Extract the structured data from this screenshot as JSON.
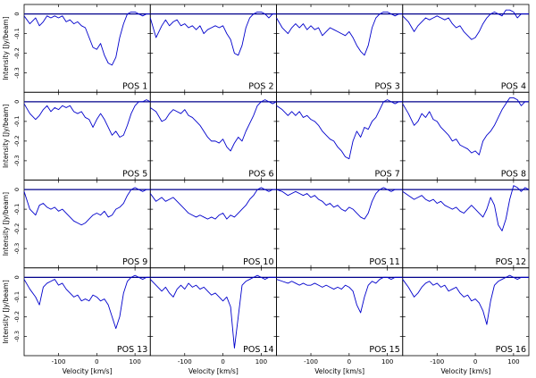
{
  "figure": {
    "ylabel": "Intensity [Jy/beam]",
    "xlabel": "Velocity [km/s]",
    "line_color": "#0000cc",
    "baseline_color": "#00008b"
  },
  "chart_data": {
    "type": "line",
    "xlabel": "Velocity [km/s]",
    "ylabel": "Intensity [Jy/beam]",
    "xlim": [
      -190,
      140
    ],
    "ylim": [
      -0.38,
      0.03
    ],
    "x_ticks": [
      -100,
      0,
      100
    ],
    "y_ticks": [
      0,
      -0.1,
      -0.2,
      -0.3
    ],
    "y_tick_labels": [
      "0",
      "-0.1",
      "-0.2",
      "-0.3"
    ],
    "grid": false,
    "layout": "4x4 grid of panels with shared axes",
    "panels": [
      {
        "name": "POS 1",
        "x": [
          -190,
          -175,
          -160,
          -150,
          -140,
          -130,
          -120,
          -110,
          -100,
          -90,
          -80,
          -70,
          -60,
          -50,
          -40,
          -30,
          -20,
          -10,
          0,
          10,
          20,
          30,
          40,
          50,
          60,
          70,
          80,
          90,
          100,
          110,
          120,
          130,
          140
        ],
        "y": [
          -0.01,
          -0.05,
          -0.02,
          -0.06,
          -0.04,
          -0.01,
          -0.02,
          -0.01,
          -0.02,
          -0.01,
          -0.04,
          -0.03,
          -0.05,
          -0.04,
          -0.06,
          -0.07,
          -0.12,
          -0.17,
          -0.18,
          -0.15,
          -0.21,
          -0.25,
          -0.26,
          -0.22,
          -0.12,
          -0.05,
          0.0,
          0.01,
          0.01,
          0.0,
          -0.01,
          0.0,
          0.0
        ]
      },
      {
        "name": "POS 2",
        "x": [
          -190,
          -175,
          -160,
          -150,
          -140,
          -130,
          -120,
          -110,
          -100,
          -90,
          -80,
          -70,
          -60,
          -50,
          -40,
          -30,
          -20,
          -10,
          0,
          10,
          20,
          30,
          40,
          50,
          60,
          70,
          80,
          90,
          100,
          110,
          120,
          130,
          140
        ],
        "y": [
          -0.02,
          -0.12,
          -0.06,
          -0.03,
          -0.06,
          -0.04,
          -0.03,
          -0.06,
          -0.05,
          -0.07,
          -0.06,
          -0.08,
          -0.06,
          -0.1,
          -0.08,
          -0.07,
          -0.06,
          -0.07,
          -0.06,
          -0.1,
          -0.13,
          -0.2,
          -0.21,
          -0.16,
          -0.07,
          -0.02,
          0.0,
          0.01,
          0.01,
          0.0,
          -0.02,
          0.0,
          0.0
        ]
      },
      {
        "name": "POS 3",
        "x": [
          -190,
          -175,
          -160,
          -150,
          -140,
          -130,
          -120,
          -110,
          -100,
          -90,
          -80,
          -70,
          -60,
          -50,
          -40,
          -30,
          -20,
          -10,
          0,
          10,
          20,
          30,
          40,
          50,
          60,
          70,
          80,
          90,
          100,
          110,
          120,
          130,
          140
        ],
        "y": [
          -0.02,
          -0.07,
          -0.1,
          -0.07,
          -0.05,
          -0.07,
          -0.05,
          -0.08,
          -0.06,
          -0.08,
          -0.07,
          -0.11,
          -0.09,
          -0.07,
          -0.08,
          -0.09,
          -0.1,
          -0.11,
          -0.09,
          -0.12,
          -0.16,
          -0.19,
          -0.21,
          -0.16,
          -0.07,
          -0.02,
          0.0,
          0.01,
          0.01,
          0.0,
          -0.01,
          0.0,
          0.0
        ]
      },
      {
        "name": "POS 4",
        "x": [
          -190,
          -175,
          -160,
          -150,
          -140,
          -130,
          -120,
          -110,
          -100,
          -90,
          -80,
          -70,
          -60,
          -50,
          -40,
          -30,
          -20,
          -10,
          0,
          10,
          20,
          30,
          40,
          50,
          60,
          70,
          80,
          90,
          100,
          110,
          120,
          130,
          140
        ],
        "y": [
          -0.01,
          -0.04,
          -0.09,
          -0.06,
          -0.04,
          -0.02,
          -0.03,
          -0.02,
          -0.01,
          -0.02,
          -0.03,
          -0.02,
          -0.05,
          -0.07,
          -0.06,
          -0.09,
          -0.11,
          -0.13,
          -0.12,
          -0.09,
          -0.05,
          -0.02,
          0.0,
          0.01,
          0.0,
          -0.01,
          0.02,
          0.02,
          0.01,
          -0.02,
          0.0,
          0.0,
          0.0
        ]
      },
      {
        "name": "POS 5",
        "x": [
          -190,
          -175,
          -160,
          -150,
          -140,
          -130,
          -120,
          -110,
          -100,
          -90,
          -80,
          -70,
          -60,
          -50,
          -40,
          -30,
          -20,
          -10,
          0,
          10,
          20,
          30,
          40,
          50,
          60,
          70,
          80,
          90,
          100,
          110,
          120,
          130,
          140
        ],
        "y": [
          -0.01,
          -0.06,
          -0.09,
          -0.07,
          -0.04,
          -0.02,
          -0.05,
          -0.03,
          -0.04,
          -0.02,
          -0.03,
          -0.02,
          -0.05,
          -0.06,
          -0.05,
          -0.08,
          -0.09,
          -0.13,
          -0.09,
          -0.06,
          -0.09,
          -0.13,
          -0.17,
          -0.15,
          -0.18,
          -0.17,
          -0.12,
          -0.06,
          -0.02,
          0.0,
          0.0,
          0.01,
          0.0
        ]
      },
      {
        "name": "POS 6",
        "x": [
          -190,
          -175,
          -160,
          -150,
          -140,
          -130,
          -120,
          -110,
          -100,
          -90,
          -80,
          -70,
          -60,
          -50,
          -40,
          -30,
          -20,
          -10,
          0,
          10,
          20,
          30,
          40,
          50,
          60,
          70,
          80,
          90,
          100,
          110,
          120,
          130,
          140
        ],
        "y": [
          -0.03,
          -0.05,
          -0.1,
          -0.09,
          -0.06,
          -0.04,
          -0.05,
          -0.06,
          -0.04,
          -0.07,
          -0.08,
          -0.1,
          -0.12,
          -0.15,
          -0.18,
          -0.2,
          -0.2,
          -0.21,
          -0.19,
          -0.23,
          -0.25,
          -0.21,
          -0.18,
          -0.2,
          -0.15,
          -0.11,
          -0.07,
          -0.02,
          0.0,
          0.01,
          0.0,
          -0.01,
          0.0
        ]
      },
      {
        "name": "POS 7",
        "x": [
          -190,
          -175,
          -160,
          -150,
          -140,
          -130,
          -120,
          -110,
          -100,
          -90,
          -80,
          -70,
          -60,
          -50,
          -40,
          -30,
          -20,
          -10,
          0,
          10,
          20,
          30,
          40,
          50,
          60,
          70,
          80,
          90,
          100,
          110,
          120,
          130,
          140
        ],
        "y": [
          -0.02,
          -0.04,
          -0.07,
          -0.05,
          -0.07,
          -0.05,
          -0.08,
          -0.07,
          -0.09,
          -0.1,
          -0.12,
          -0.15,
          -0.17,
          -0.19,
          -0.2,
          -0.23,
          -0.25,
          -0.28,
          -0.29,
          -0.2,
          -0.15,
          -0.18,
          -0.13,
          -0.14,
          -0.1,
          -0.08,
          -0.04,
          0.0,
          0.01,
          0.0,
          -0.01,
          0.0,
          0.0
        ]
      },
      {
        "name": "POS 8",
        "x": [
          -190,
          -175,
          -160,
          -150,
          -140,
          -130,
          -120,
          -110,
          -100,
          -90,
          -80,
          -70,
          -60,
          -50,
          -40,
          -30,
          -20,
          -10,
          0,
          10,
          20,
          30,
          40,
          50,
          60,
          70,
          80,
          90,
          100,
          110,
          120,
          130,
          140
        ],
        "y": [
          -0.01,
          -0.06,
          -0.12,
          -0.1,
          -0.06,
          -0.08,
          -0.05,
          -0.09,
          -0.1,
          -0.13,
          -0.15,
          -0.17,
          -0.2,
          -0.19,
          -0.22,
          -0.23,
          -0.24,
          -0.26,
          -0.25,
          -0.27,
          -0.2,
          -0.17,
          -0.15,
          -0.12,
          -0.08,
          -0.04,
          -0.01,
          0.02,
          0.02,
          0.01,
          -0.02,
          0.0,
          0.0
        ]
      },
      {
        "name": "POS 9",
        "x": [
          -190,
          -175,
          -160,
          -150,
          -140,
          -130,
          -120,
          -110,
          -100,
          -90,
          -80,
          -70,
          -60,
          -50,
          -40,
          -30,
          -20,
          -10,
          0,
          10,
          20,
          30,
          40,
          50,
          60,
          70,
          80,
          90,
          100,
          110,
          120,
          130,
          140
        ],
        "y": [
          -0.01,
          -0.1,
          -0.13,
          -0.08,
          -0.07,
          -0.09,
          -0.1,
          -0.09,
          -0.11,
          -0.1,
          -0.12,
          -0.14,
          -0.16,
          -0.17,
          -0.18,
          -0.17,
          -0.15,
          -0.13,
          -0.12,
          -0.13,
          -0.11,
          -0.14,
          -0.13,
          -0.1,
          -0.09,
          -0.07,
          -0.03,
          0.0,
          0.01,
          0.0,
          -0.01,
          0.0,
          0.0
        ]
      },
      {
        "name": "POS 10",
        "x": [
          -190,
          -175,
          -160,
          -150,
          -140,
          -130,
          -120,
          -110,
          -100,
          -90,
          -80,
          -70,
          -60,
          -50,
          -40,
          -30,
          -20,
          -10,
          0,
          10,
          20,
          30,
          40,
          50,
          60,
          70,
          80,
          90,
          100,
          110,
          120,
          130,
          140
        ],
        "y": [
          -0.02,
          -0.06,
          -0.04,
          -0.06,
          -0.05,
          -0.04,
          -0.06,
          -0.08,
          -0.1,
          -0.12,
          -0.13,
          -0.14,
          -0.13,
          -0.14,
          -0.15,
          -0.14,
          -0.15,
          -0.13,
          -0.12,
          -0.15,
          -0.13,
          -0.14,
          -0.12,
          -0.1,
          -0.08,
          -0.05,
          -0.03,
          0.0,
          0.01,
          0.0,
          -0.01,
          0.0,
          0.0
        ]
      },
      {
        "name": "POS 11",
        "x": [
          -190,
          -175,
          -160,
          -150,
          -140,
          -130,
          -120,
          -110,
          -100,
          -90,
          -80,
          -70,
          -60,
          -50,
          -40,
          -30,
          -20,
          -10,
          0,
          10,
          20,
          30,
          40,
          50,
          60,
          70,
          80,
          90,
          100,
          110,
          120,
          130,
          140
        ],
        "y": [
          0.0,
          -0.01,
          -0.03,
          -0.02,
          -0.01,
          -0.02,
          -0.03,
          -0.02,
          -0.04,
          -0.03,
          -0.05,
          -0.06,
          -0.08,
          -0.07,
          -0.09,
          -0.08,
          -0.1,
          -0.11,
          -0.09,
          -0.1,
          -0.12,
          -0.14,
          -0.15,
          -0.12,
          -0.06,
          -0.02,
          0.0,
          0.01,
          0.0,
          -0.01,
          0.0,
          0.0,
          0.0
        ]
      },
      {
        "name": "POS 12",
        "x": [
          -190,
          -175,
          -160,
          -150,
          -140,
          -130,
          -120,
          -110,
          -100,
          -90,
          -80,
          -70,
          -60,
          -50,
          -40,
          -30,
          -20,
          -10,
          0,
          10,
          20,
          30,
          40,
          50,
          60,
          70,
          80,
          90,
          100,
          110,
          120,
          130,
          140
        ],
        "y": [
          -0.01,
          -0.03,
          -0.05,
          -0.04,
          -0.03,
          -0.05,
          -0.06,
          -0.05,
          -0.07,
          -0.06,
          -0.08,
          -0.09,
          -0.1,
          -0.09,
          -0.11,
          -0.12,
          -0.1,
          -0.08,
          -0.1,
          -0.12,
          -0.14,
          -0.1,
          -0.04,
          -0.08,
          -0.18,
          -0.21,
          -0.15,
          -0.05,
          0.02,
          0.01,
          -0.01,
          0.01,
          0.0
        ]
      },
      {
        "name": "POS 13",
        "x": [
          -190,
          -175,
          -160,
          -150,
          -140,
          -130,
          -120,
          -110,
          -100,
          -90,
          -80,
          -70,
          -60,
          -50,
          -40,
          -30,
          -20,
          -10,
          0,
          10,
          20,
          30,
          40,
          50,
          60,
          70,
          80,
          90,
          100,
          110,
          120,
          130,
          140
        ],
        "y": [
          -0.01,
          -0.06,
          -0.1,
          -0.14,
          -0.05,
          -0.03,
          -0.02,
          -0.01,
          -0.04,
          -0.03,
          -0.06,
          -0.08,
          -0.1,
          -0.09,
          -0.12,
          -0.11,
          -0.12,
          -0.09,
          -0.1,
          -0.12,
          -0.11,
          -0.14,
          -0.2,
          -0.26,
          -0.2,
          -0.08,
          -0.02,
          0.0,
          0.01,
          0.0,
          -0.01,
          0.0,
          0.0
        ]
      },
      {
        "name": "POS 14",
        "x": [
          -190,
          -175,
          -160,
          -150,
          -140,
          -130,
          -120,
          -110,
          -100,
          -90,
          -80,
          -70,
          -60,
          -50,
          -40,
          -30,
          -20,
          -10,
          0,
          10,
          20,
          30,
          40,
          50,
          60,
          70,
          80,
          90,
          100,
          110,
          120,
          130,
          140
        ],
        "y": [
          -0.01,
          -0.04,
          -0.07,
          -0.05,
          -0.08,
          -0.1,
          -0.06,
          -0.04,
          -0.06,
          -0.03,
          -0.05,
          -0.04,
          -0.06,
          -0.05,
          -0.07,
          -0.09,
          -0.08,
          -0.1,
          -0.12,
          -0.1,
          -0.15,
          -0.36,
          -0.2,
          -0.04,
          -0.02,
          -0.01,
          0.0,
          0.01,
          0.0,
          -0.01,
          0.0,
          0.0,
          0.0
        ]
      },
      {
        "name": "POS 15",
        "x": [
          -190,
          -175,
          -160,
          -150,
          -140,
          -130,
          -120,
          -110,
          -100,
          -90,
          -80,
          -70,
          -60,
          -50,
          -40,
          -30,
          -20,
          -10,
          0,
          10,
          20,
          30,
          40,
          50,
          60,
          70,
          80,
          90,
          100,
          110,
          120,
          130,
          140
        ],
        "y": [
          -0.01,
          -0.02,
          -0.03,
          -0.02,
          -0.03,
          -0.04,
          -0.03,
          -0.04,
          -0.04,
          -0.03,
          -0.04,
          -0.05,
          -0.04,
          -0.05,
          -0.06,
          -0.05,
          -0.06,
          -0.04,
          -0.05,
          -0.07,
          -0.14,
          -0.18,
          -0.1,
          -0.04,
          -0.02,
          -0.03,
          -0.01,
          0.0,
          0.0,
          -0.01,
          0.0,
          0.0,
          0.0
        ]
      },
      {
        "name": "POS 16",
        "x": [
          -190,
          -175,
          -160,
          -150,
          -140,
          -130,
          -120,
          -110,
          -100,
          -90,
          -80,
          -70,
          -60,
          -50,
          -40,
          -30,
          -20,
          -10,
          0,
          10,
          20,
          30,
          40,
          50,
          60,
          70,
          80,
          90,
          100,
          110,
          120,
          130,
          140
        ],
        "y": [
          -0.01,
          -0.05,
          -0.1,
          -0.08,
          -0.05,
          -0.03,
          -0.02,
          -0.04,
          -0.03,
          -0.05,
          -0.04,
          -0.07,
          -0.06,
          -0.05,
          -0.08,
          -0.1,
          -0.09,
          -0.12,
          -0.11,
          -0.13,
          -0.17,
          -0.24,
          -0.12,
          -0.04,
          -0.02,
          -0.01,
          0.0,
          0.01,
          0.0,
          -0.01,
          0.0,
          0.0,
          0.0
        ]
      }
    ]
  }
}
